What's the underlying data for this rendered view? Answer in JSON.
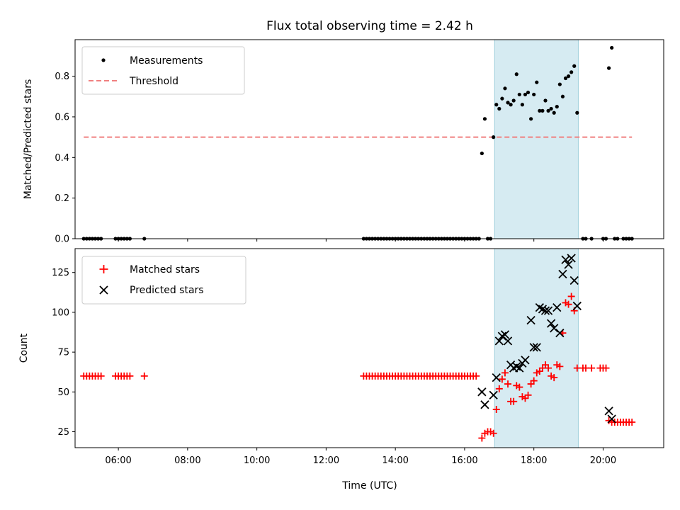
{
  "chart_data": [
    {
      "type": "scatter",
      "title": "Flux total observing time = 2.42 h",
      "xlabel": "",
      "ylabel": "Matched/Predicted stars",
      "xlim": [
        "04:45",
        "21:45"
      ],
      "ylim": [
        0,
        0.98
      ],
      "yticks": [
        "0.0",
        "0.2",
        "0.4",
        "0.6",
        "0.8"
      ],
      "legend": {
        "position": "top-left",
        "entries": [
          "Measurements",
          "Threshold"
        ]
      },
      "highlight_span": {
        "x": [
          "16:52",
          "19:17"
        ],
        "color": "#add8e6"
      },
      "threshold": {
        "name": "Threshold",
        "value": 0.5,
        "x": [
          "05:00",
          "20:50"
        ],
        "color": "#f08080"
      },
      "series": [
        {
          "name": "Measurements",
          "color": "#000000",
          "points": [
            [
              "05:00",
              0
            ],
            [
              "05:05",
              0
            ],
            [
              "05:10",
              0
            ],
            [
              "05:15",
              0
            ],
            [
              "05:20",
              0
            ],
            [
              "05:25",
              0
            ],
            [
              "05:30",
              0
            ],
            [
              "05:55",
              0
            ],
            [
              "06:00",
              0
            ],
            [
              "06:05",
              0
            ],
            [
              "06:10",
              0
            ],
            [
              "06:15",
              0
            ],
            [
              "06:20",
              0
            ],
            [
              "06:45",
              0
            ],
            [
              "13:05",
              0
            ],
            [
              "13:10",
              0
            ],
            [
              "13:15",
              0
            ],
            [
              "13:20",
              0
            ],
            [
              "13:25",
              0
            ],
            [
              "13:30",
              0
            ],
            [
              "13:35",
              0
            ],
            [
              "13:40",
              0
            ],
            [
              "13:45",
              0
            ],
            [
              "13:50",
              0
            ],
            [
              "13:55",
              0
            ],
            [
              "14:00",
              0
            ],
            [
              "14:05",
              0
            ],
            [
              "14:10",
              0
            ],
            [
              "14:15",
              0
            ],
            [
              "14:20",
              0
            ],
            [
              "14:25",
              0
            ],
            [
              "14:30",
              0
            ],
            [
              "14:35",
              0
            ],
            [
              "14:40",
              0
            ],
            [
              "14:45",
              0
            ],
            [
              "14:50",
              0
            ],
            [
              "14:55",
              0
            ],
            [
              "15:00",
              0
            ],
            [
              "15:05",
              0
            ],
            [
              "15:10",
              0
            ],
            [
              "15:15",
              0
            ],
            [
              "15:20",
              0
            ],
            [
              "15:25",
              0
            ],
            [
              "15:30",
              0
            ],
            [
              "15:35",
              0
            ],
            [
              "15:40",
              0
            ],
            [
              "15:45",
              0
            ],
            [
              "15:50",
              0
            ],
            [
              "15:55",
              0
            ],
            [
              "16:00",
              0
            ],
            [
              "16:05",
              0
            ],
            [
              "16:10",
              0
            ],
            [
              "16:15",
              0
            ],
            [
              "16:20",
              0
            ],
            [
              "16:25",
              0
            ],
            [
              "16:30",
              0.42
            ],
            [
              "16:35",
              0.59
            ],
            [
              "16:40",
              0
            ],
            [
              "16:45",
              0
            ],
            [
              "16:50",
              0.5
            ],
            [
              "16:55",
              0.66
            ],
            [
              "17:00",
              0.64
            ],
            [
              "17:05",
              0.69
            ],
            [
              "17:10",
              0.74
            ],
            [
              "17:15",
              0.67
            ],
            [
              "17:20",
              0.66
            ],
            [
              "17:25",
              0.68
            ],
            [
              "17:30",
              0.81
            ],
            [
              "17:35",
              0.71
            ],
            [
              "17:40",
              0.66
            ],
            [
              "17:45",
              0.71
            ],
            [
              "17:50",
              0.72
            ],
            [
              "17:55",
              0.59
            ],
            [
              "18:00",
              0.71
            ],
            [
              "18:05",
              0.77
            ],
            [
              "18:10",
              0.63
            ],
            [
              "18:15",
              0.63
            ],
            [
              "18:20",
              0.68
            ],
            [
              "18:25",
              0.63
            ],
            [
              "18:30",
              0.64
            ],
            [
              "18:35",
              0.62
            ],
            [
              "18:40",
              0.65
            ],
            [
              "18:45",
              0.76
            ],
            [
              "18:50",
              0.7
            ],
            [
              "18:55",
              0.79
            ],
            [
              "19:00",
              0.8
            ],
            [
              "19:05",
              0.82
            ],
            [
              "19:10",
              0.85
            ],
            [
              "19:15",
              0.62
            ],
            [
              "19:25",
              0
            ],
            [
              "19:30",
              0
            ],
            [
              "19:40",
              0
            ],
            [
              "20:00",
              0
            ],
            [
              "20:05",
              0
            ],
            [
              "20:10",
              0.84
            ],
            [
              "20:15",
              0.94
            ],
            [
              "20:20",
              0
            ],
            [
              "20:25",
              0
            ],
            [
              "20:35",
              0
            ],
            [
              "20:40",
              0
            ],
            [
              "20:45",
              0
            ],
            [
              "20:50",
              0
            ]
          ]
        }
      ]
    },
    {
      "type": "scatter",
      "title": "",
      "xlabel": "Time (UTC)",
      "ylabel": "Count",
      "xlim": [
        "04:45",
        "21:45"
      ],
      "ylim": [
        15,
        140
      ],
      "xticks": [
        "06:00",
        "08:00",
        "10:00",
        "12:00",
        "14:00",
        "16:00",
        "18:00",
        "20:00"
      ],
      "yticks": [
        "25",
        "50",
        "75",
        "100",
        "125"
      ],
      "legend": {
        "position": "top-left",
        "entries": [
          "Matched stars",
          "Predicted stars"
        ]
      },
      "highlight_span": {
        "x": [
          "16:52",
          "19:17"
        ],
        "color": "#add8e6"
      },
      "series": [
        {
          "name": "Matched stars",
          "marker": "plus",
          "color": "#ff0000",
          "points": [
            [
              "05:00",
              60
            ],
            [
              "05:05",
              60
            ],
            [
              "05:10",
              60
            ],
            [
              "05:15",
              60
            ],
            [
              "05:20",
              60
            ],
            [
              "05:25",
              60
            ],
            [
              "05:30",
              60
            ],
            [
              "05:55",
              60
            ],
            [
              "06:00",
              60
            ],
            [
              "06:05",
              60
            ],
            [
              "06:10",
              60
            ],
            [
              "06:15",
              60
            ],
            [
              "06:20",
              60
            ],
            [
              "06:45",
              60
            ],
            [
              "13:05",
              60
            ],
            [
              "13:10",
              60
            ],
            [
              "13:15",
              60
            ],
            [
              "13:20",
              60
            ],
            [
              "13:25",
              60
            ],
            [
              "13:30",
              60
            ],
            [
              "13:35",
              60
            ],
            [
              "13:40",
              60
            ],
            [
              "13:45",
              60
            ],
            [
              "13:50",
              60
            ],
            [
              "13:55",
              60
            ],
            [
              "14:00",
              60
            ],
            [
              "14:05",
              60
            ],
            [
              "14:10",
              60
            ],
            [
              "14:15",
              60
            ],
            [
              "14:20",
              60
            ],
            [
              "14:25",
              60
            ],
            [
              "14:30",
              60
            ],
            [
              "14:35",
              60
            ],
            [
              "14:40",
              60
            ],
            [
              "14:45",
              60
            ],
            [
              "14:50",
              60
            ],
            [
              "14:55",
              60
            ],
            [
              "15:00",
              60
            ],
            [
              "15:05",
              60
            ],
            [
              "15:10",
              60
            ],
            [
              "15:15",
              60
            ],
            [
              "15:20",
              60
            ],
            [
              "15:25",
              60
            ],
            [
              "15:30",
              60
            ],
            [
              "15:35",
              60
            ],
            [
              "15:40",
              60
            ],
            [
              "15:45",
              60
            ],
            [
              "15:50",
              60
            ],
            [
              "15:55",
              60
            ],
            [
              "16:00",
              60
            ],
            [
              "16:05",
              60
            ],
            [
              "16:10",
              60
            ],
            [
              "16:15",
              60
            ],
            [
              "16:20",
              60
            ],
            [
              "16:30",
              21
            ],
            [
              "16:35",
              24
            ],
            [
              "16:40",
              25
            ],
            [
              "16:45",
              25
            ],
            [
              "16:50",
              24
            ],
            [
              "16:55",
              39
            ],
            [
              "17:00",
              52
            ],
            [
              "17:05",
              58
            ],
            [
              "17:10",
              62
            ],
            [
              "17:15",
              55
            ],
            [
              "17:20",
              44
            ],
            [
              "17:25",
              44
            ],
            [
              "17:30",
              54
            ],
            [
              "17:35",
              53
            ],
            [
              "17:40",
              47
            ],
            [
              "17:45",
              46
            ],
            [
              "17:50",
              48
            ],
            [
              "17:55",
              55
            ],
            [
              "18:00",
              57
            ],
            [
              "18:05",
              62
            ],
            [
              "18:10",
              63
            ],
            [
              "18:15",
              65
            ],
            [
              "18:20",
              67
            ],
            [
              "18:25",
              65
            ],
            [
              "18:30",
              60
            ],
            [
              "18:35",
              59
            ],
            [
              "18:40",
              67
            ],
            [
              "18:45",
              66
            ],
            [
              "18:50",
              87
            ],
            [
              "18:55",
              106
            ],
            [
              "19:00",
              105
            ],
            [
              "19:05",
              110
            ],
            [
              "19:10",
              101
            ],
            [
              "19:15",
              65
            ],
            [
              "19:25",
              65
            ],
            [
              "19:30",
              65
            ],
            [
              "19:40",
              65
            ],
            [
              "19:55",
              65
            ],
            [
              "20:00",
              65
            ],
            [
              "20:05",
              65
            ],
            [
              "20:10",
              32
            ],
            [
              "20:15",
              31
            ],
            [
              "20:20",
              31
            ],
            [
              "20:25",
              31
            ],
            [
              "20:30",
              31
            ],
            [
              "20:35",
              31
            ],
            [
              "20:40",
              31
            ],
            [
              "20:45",
              31
            ],
            [
              "20:50",
              31
            ]
          ]
        },
        {
          "name": "Predicted stars",
          "marker": "x",
          "color": "#000000",
          "points": [
            [
              "16:30",
              50
            ],
            [
              "16:35",
              42
            ],
            [
              "16:50",
              48
            ],
            [
              "16:55",
              59
            ],
            [
              "17:00",
              82
            ],
            [
              "17:05",
              85
            ],
            [
              "17:10",
              86
            ],
            [
              "17:15",
              82
            ],
            [
              "17:20",
              67
            ],
            [
              "17:25",
              65
            ],
            [
              "17:30",
              66
            ],
            [
              "17:35",
              65
            ],
            [
              "17:40",
              68
            ],
            [
              "17:45",
              70
            ],
            [
              "17:55",
              95
            ],
            [
              "18:00",
              78
            ],
            [
              "18:05",
              78
            ],
            [
              "18:10",
              103
            ],
            [
              "18:15",
              102
            ],
            [
              "18:20",
              101
            ],
            [
              "18:25",
              101
            ],
            [
              "18:30",
              93
            ],
            [
              "18:35",
              90
            ],
            [
              "18:40",
              103
            ],
            [
              "18:45",
              87
            ],
            [
              "18:50",
              124
            ],
            [
              "18:55",
              133
            ],
            [
              "19:00",
              130
            ],
            [
              "19:05",
              134
            ],
            [
              "19:10",
              120
            ],
            [
              "19:15",
              104
            ],
            [
              "20:10",
              38
            ],
            [
              "20:15",
              33
            ]
          ]
        }
      ]
    }
  ]
}
